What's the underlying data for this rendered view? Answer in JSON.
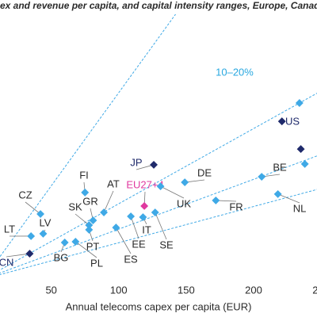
{
  "chart_data": {
    "type": "scatter",
    "title": "ex and revenue per capita, and capital intensity ranges, Europe, Canad",
    "x_label": "Annual telecoms capex per capita (EUR)",
    "annotation": "10–20%",
    "xlim": [
      12,
      247
    ],
    "ylim": [
      0,
      1400
    ],
    "xticks": [
      50,
      100,
      150,
      200,
      250
    ],
    "intensity_lines": [
      0.107,
      0.265,
      0.4,
      0.55
    ],
    "line_color": "#3fa9e6",
    "points": [
      {
        "label": "US",
        "x": 221,
        "y": 791,
        "color": "#1f2a6b"
      },
      {
        "label": null,
        "x": 234,
        "y": 883,
        "color": "#3fa9e6"
      },
      {
        "label": null,
        "x": 235,
        "y": 652,
        "color": "#1f2a6b"
      },
      {
        "label": null,
        "x": 238,
        "y": 577,
        "color": "#3fa9e6"
      },
      {
        "label": "JP",
        "x": 126,
        "y": 573,
        "color": "#1f2a6b"
      },
      {
        "label": "FI",
        "x": 75,
        "y": 434,
        "color": "#3fa9e6"
      },
      {
        "label": "CZ",
        "x": 42,
        "y": 326,
        "color": "#3fa9e6"
      },
      {
        "label": "LT",
        "x": 35,
        "y": 215,
        "color": "#3fa9e6"
      },
      {
        "label": "LV",
        "x": 44,
        "y": 227,
        "color": "#3fa9e6"
      },
      {
        "label": "CN",
        "x": 34,
        "y": 127,
        "color": "#1f2a6b"
      },
      {
        "label": "BG",
        "x": 60,
        "y": 183,
        "color": "#3fa9e6"
      },
      {
        "label": "PL",
        "x": 68,
        "y": 187,
        "color": "#3fa9e6"
      },
      {
        "label": "SK",
        "x": 78,
        "y": 270,
        "color": "#3fa9e6"
      },
      {
        "label": "GR",
        "x": 81,
        "y": 294,
        "color": "#3fa9e6"
      },
      {
        "label": "PT",
        "x": 78,
        "y": 247,
        "color": "#3fa9e6"
      },
      {
        "label": "AT",
        "x": 89,
        "y": 334,
        "color": "#3fa9e6"
      },
      {
        "label": "ES",
        "x": 98,
        "y": 258,
        "color": "#3fa9e6"
      },
      {
        "label": "EE",
        "x": 109,
        "y": 314,
        "color": "#3fa9e6"
      },
      {
        "label": "IT",
        "x": 118,
        "y": 310,
        "color": "#3fa9e6"
      },
      {
        "label": "EU27+4",
        "x": 119,
        "y": 366,
        "color": "#e0399f"
      },
      {
        "label": "UK",
        "x": 131,
        "y": 465,
        "color": "#3fa9e6"
      },
      {
        "label": "SE",
        "x": 127,
        "y": 334,
        "color": "#3fa9e6"
      },
      {
        "label": "DE",
        "x": 149,
        "y": 485,
        "color": "#3fa9e6"
      },
      {
        "label": "FR",
        "x": 172,
        "y": 394,
        "color": "#3fa9e6"
      },
      {
        "label": "BE",
        "x": 206,
        "y": 513,
        "color": "#3fa9e6"
      },
      {
        "label": "NL",
        "x": 218,
        "y": 426,
        "color": "#3fa9e6"
      }
    ]
  }
}
